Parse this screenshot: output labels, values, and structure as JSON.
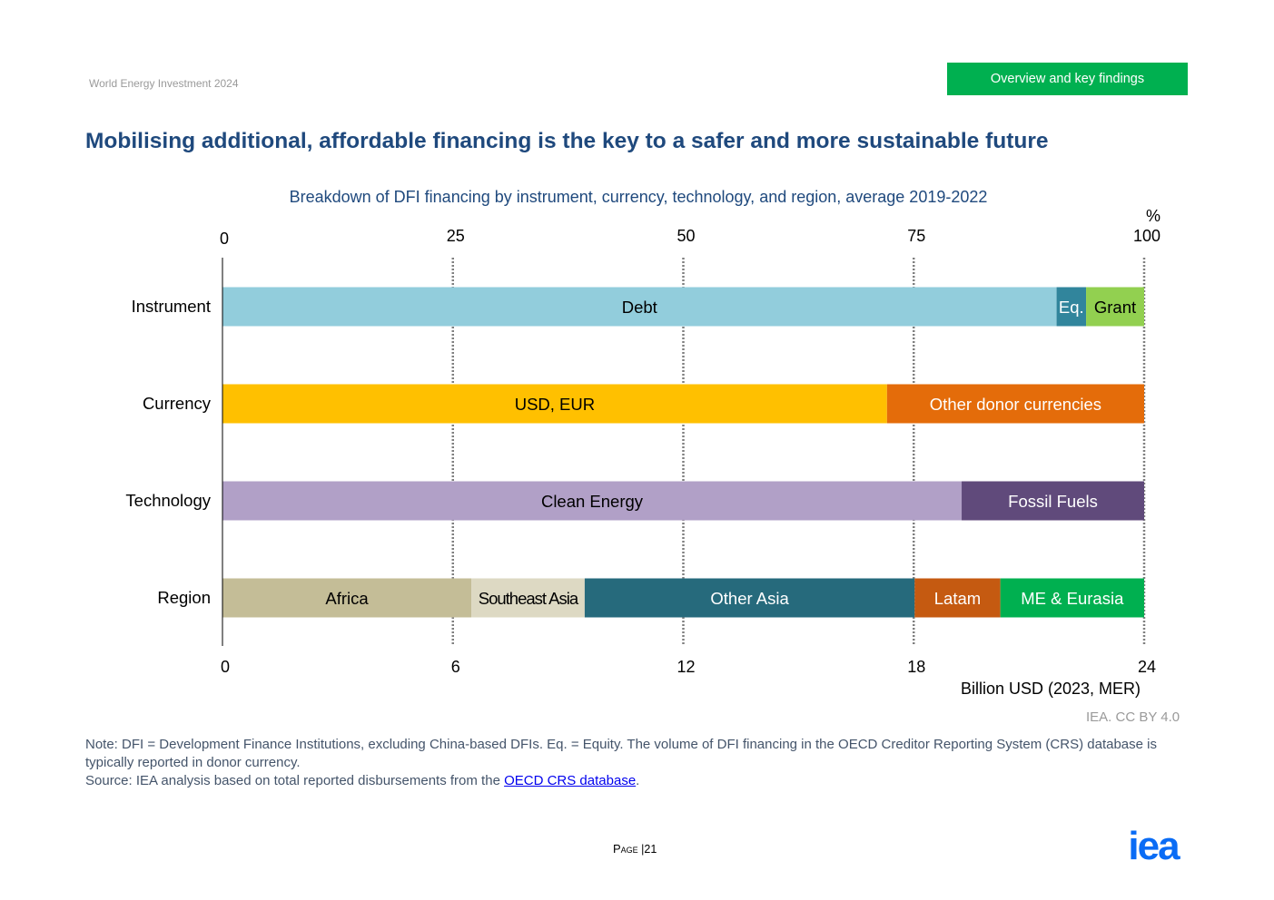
{
  "header": {
    "report": "World Energy Investment 2024",
    "section": "Overview and key findings"
  },
  "title": "Mobilising additional, affordable financing is the key to a safer and more sustainable future",
  "chart_data": {
    "type": "bar",
    "orientation": "horizontal-stacked",
    "title": "Breakdown of DFI financing by instrument, currency, technology, and region, average 2019-2022",
    "top_axis": {
      "label": "%",
      "range": [
        0,
        100
      ],
      "ticks": [
        "0",
        "25",
        "50",
        "75",
        "100"
      ]
    },
    "bottom_axis": {
      "label": "Billion USD (2023, MER)",
      "range": [
        0,
        24
      ],
      "ticks": [
        "0",
        "6",
        "12",
        "18",
        "24"
      ]
    },
    "grid": "vertical dotted",
    "categories": [
      "Instrument",
      "Currency",
      "Technology",
      "Region"
    ],
    "rows": [
      {
        "category": "Instrument",
        "segments": [
          {
            "label": "Debt",
            "value": 90.5,
            "color": "#92cddc",
            "text_color": "#000000"
          },
          {
            "label": "Eq.",
            "value": 3.2,
            "color": "#31859c",
            "text_color": "#ffffff"
          },
          {
            "label": "Grant",
            "value": 6.3,
            "color": "#92d050",
            "text_color": "#000000"
          }
        ]
      },
      {
        "category": "Currency",
        "segments": [
          {
            "label": "USD, EUR",
            "value": 72.1,
            "color": "#ffc000",
            "text_color": "#000000"
          },
          {
            "label": "Other donor currencies",
            "value": 27.9,
            "color": "#e46c0a",
            "text_color": "#ffffff"
          }
        ]
      },
      {
        "category": "Technology",
        "segments": [
          {
            "label": "Clean Energy",
            "value": 80.2,
            "color": "#b1a0c7",
            "text_color": "#000000"
          },
          {
            "label": "Fossil Fuels",
            "value": 19.8,
            "color": "#604a7b",
            "text_color": "#ffffff"
          }
        ]
      },
      {
        "category": "Region",
        "segments": [
          {
            "label": "Africa",
            "value": 27.0,
            "color": "#c4bd97",
            "text_color": "#000000"
          },
          {
            "label": "Southeast Asia",
            "value": 12.3,
            "color": "#ddd9c3",
            "text_color": "#000000"
          },
          {
            "label": "Other Asia",
            "value": 35.8,
            "color": "#266a7c",
            "text_color": "#ffffff"
          },
          {
            "label": "Latam",
            "value": 9.3,
            "color": "#c55a11",
            "text_color": "#ffffff"
          },
          {
            "label": "ME & Eurasia",
            "value": 15.6,
            "color": "#00b050",
            "text_color": "#ffffff"
          }
        ]
      }
    ]
  },
  "credit": "IEA. CC BY 4.0",
  "note": "Note: DFI = Development Finance Institutions, excluding China-based DFIs. Eq. = Equity. The volume of DFI financing in the OECD Creditor Reporting System (CRS) database is typically reported in donor currency.",
  "source": {
    "prefix": "Source: IEA analysis based on total reported disbursements from the ",
    "link": "OECD CRS database",
    "suffix": "."
  },
  "footer": {
    "page_label": "Page",
    "separator": "|",
    "page_number": "21"
  },
  "logo": {
    "text": "iea",
    "color": "#0a6cf5"
  }
}
